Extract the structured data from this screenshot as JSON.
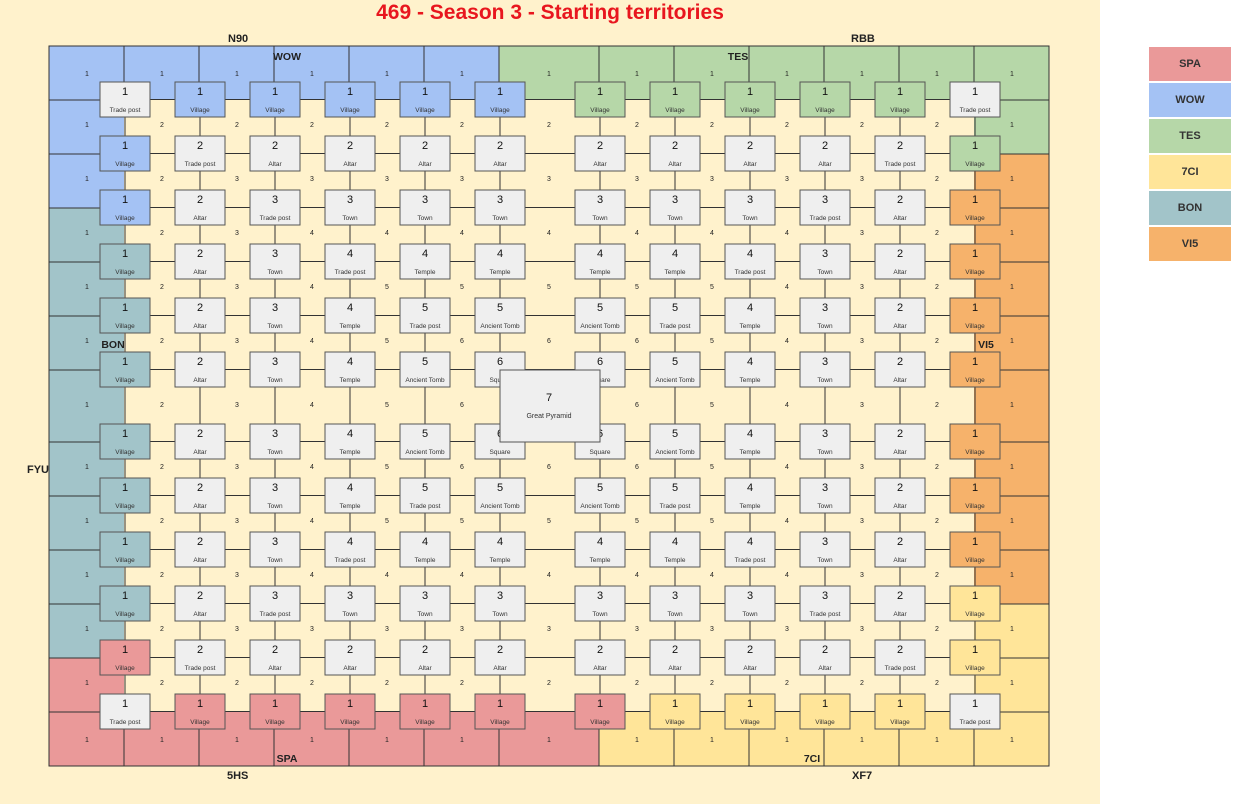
{
  "title": "469 - Season 3 - Starting territories",
  "colors": {
    "SPA": "#ea9999",
    "WOW": "#a4c2f4",
    "TES": "#b6d7a8",
    "7CI": "#ffe599",
    "BON": "#a2c4c9",
    "VI5": "#f6b26b",
    "neutral": "#efefef",
    "background": "#fff2cc"
  },
  "legend": [
    {
      "code": "SPA",
      "color": "#ea9999"
    },
    {
      "code": "WOW",
      "color": "#a4c2f4"
    },
    {
      "code": "TES",
      "color": "#b6d7a8"
    },
    {
      "code": "7CI",
      "color": "#ffe599"
    },
    {
      "code": "BON",
      "color": "#a2c4c9"
    },
    {
      "code": "VI5",
      "color": "#f6b26b"
    }
  ],
  "edge_labels": {
    "top_left": "N90",
    "top_right": "RBB",
    "left": "FYU",
    "bottom_left": "5HS",
    "bottom_right": "XF7"
  },
  "region_labels": [
    {
      "text": "WOW",
      "area": "top-left"
    },
    {
      "text": "TES",
      "area": "top-right"
    },
    {
      "text": "BON",
      "area": "left"
    },
    {
      "text": "VI5",
      "area": "right"
    },
    {
      "text": "SPA",
      "area": "bottom-left"
    },
    {
      "text": "7CI",
      "area": "bottom-right"
    }
  ],
  "grid": {
    "row_order": [
      0,
      1,
      2,
      3,
      4,
      5,
      6,
      7,
      8,
      9,
      10,
      11,
      12
    ],
    "tiles_levels": [
      [
        1,
        1,
        1,
        1,
        1,
        1,
        1,
        1,
        1,
        1,
        1,
        1
      ],
      [
        1,
        2,
        2,
        2,
        2,
        2,
        2,
        2,
        2,
        2,
        2,
        1
      ],
      [
        1,
        2,
        3,
        3,
        3,
        3,
        3,
        3,
        3,
        3,
        2,
        1
      ],
      [
        1,
        2,
        3,
        4,
        4,
        4,
        4,
        4,
        4,
        3,
        2,
        1
      ],
      [
        1,
        2,
        3,
        4,
        5,
        5,
        5,
        5,
        4,
        3,
        2,
        1
      ],
      [
        1,
        2,
        3,
        4,
        5,
        6,
        6,
        5,
        4,
        3,
        2,
        1
      ],
      [
        1,
        2,
        3,
        4,
        5,
        6,
        6,
        5,
        4,
        3,
        2,
        1
      ],
      [
        1,
        2,
        3,
        4,
        5,
        5,
        5,
        5,
        4,
        3,
        2,
        1
      ],
      [
        1,
        2,
        3,
        4,
        4,
        4,
        4,
        4,
        4,
        3,
        2,
        1
      ],
      [
        1,
        2,
        3,
        3,
        3,
        3,
        3,
        3,
        3,
        3,
        2,
        1
      ],
      [
        1,
        2,
        2,
        2,
        2,
        2,
        2,
        2,
        2,
        2,
        2,
        1
      ],
      [
        1,
        1,
        1,
        1,
        1,
        1,
        1,
        1,
        1,
        1,
        1,
        1
      ]
    ],
    "tiles_types": [
      [
        "Trade post",
        "Village",
        "Village",
        "Village",
        "Village",
        "Village",
        "Village",
        "Village",
        "Village",
        "Village",
        "Village",
        "Trade post"
      ],
      [
        "Village",
        "Trade post",
        "Altar",
        "Altar",
        "Altar",
        "Altar",
        "Altar",
        "Altar",
        "Altar",
        "Altar",
        "Trade post",
        "Village"
      ],
      [
        "Village",
        "Altar",
        "Trade post",
        "Town",
        "Town",
        "Town",
        "Town",
        "Town",
        "Town",
        "Trade post",
        "Altar",
        "Village"
      ],
      [
        "Village",
        "Altar",
        "Town",
        "Trade post",
        "Temple",
        "Temple",
        "Temple",
        "Temple",
        "Trade post",
        "Town",
        "Altar",
        "Village"
      ],
      [
        "Village",
        "Altar",
        "Town",
        "Temple",
        "Trade post",
        "Ancient Tomb",
        "Ancient Tomb",
        "Trade post",
        "Temple",
        "Town",
        "Altar",
        "Village"
      ],
      [
        "Village",
        "Altar",
        "Town",
        "Temple",
        "Ancient Tomb",
        "Square",
        "Square",
        "Ancient Tomb",
        "Temple",
        "Town",
        "Altar",
        "Village"
      ],
      [
        "Village",
        "Altar",
        "Town",
        "Temple",
        "Ancient Tomb",
        "Square",
        "Square",
        "Ancient Tomb",
        "Temple",
        "Town",
        "Altar",
        "Village"
      ],
      [
        "Village",
        "Altar",
        "Town",
        "Temple",
        "Trade post",
        "Ancient Tomb",
        "Ancient Tomb",
        "Trade post",
        "Temple",
        "Town",
        "Altar",
        "Village"
      ],
      [
        "Village",
        "Altar",
        "Town",
        "Trade post",
        "Temple",
        "Temple",
        "Temple",
        "Temple",
        "Trade post",
        "Town",
        "Altar",
        "Village"
      ],
      [
        "Village",
        "Altar",
        "Trade post",
        "Town",
        "Town",
        "Town",
        "Town",
        "Town",
        "Town",
        "Trade post",
        "Altar",
        "Village"
      ],
      [
        "Village",
        "Trade post",
        "Altar",
        "Altar",
        "Altar",
        "Altar",
        "Altar",
        "Altar",
        "Altar",
        "Altar",
        "Trade post",
        "Village"
      ],
      [
        "Trade post",
        "Village",
        "Village",
        "Village",
        "Village",
        "Village",
        "Village",
        "Village",
        "Village",
        "Village",
        "Village",
        "Trade post"
      ]
    ],
    "tiles_owner": [
      [
        "neutral",
        "WOW",
        "WOW",
        "WOW",
        "WOW",
        "WOW",
        "TES",
        "TES",
        "TES",
        "TES",
        "TES",
        "neutral"
      ],
      [
        "WOW",
        "neutral",
        "neutral",
        "neutral",
        "neutral",
        "neutral",
        "neutral",
        "neutral",
        "neutral",
        "neutral",
        "neutral",
        "TES"
      ],
      [
        "WOW",
        "neutral",
        "neutral",
        "neutral",
        "neutral",
        "neutral",
        "neutral",
        "neutral",
        "neutral",
        "neutral",
        "neutral",
        "VI5"
      ],
      [
        "BON",
        "neutral",
        "neutral",
        "neutral",
        "neutral",
        "neutral",
        "neutral",
        "neutral",
        "neutral",
        "neutral",
        "neutral",
        "VI5"
      ],
      [
        "BON",
        "neutral",
        "neutral",
        "neutral",
        "neutral",
        "neutral",
        "neutral",
        "neutral",
        "neutral",
        "neutral",
        "neutral",
        "VI5"
      ],
      [
        "BON",
        "neutral",
        "neutral",
        "neutral",
        "neutral",
        "neutral",
        "neutral",
        "neutral",
        "neutral",
        "neutral",
        "neutral",
        "VI5"
      ],
      [
        "BON",
        "neutral",
        "neutral",
        "neutral",
        "neutral",
        "neutral",
        "neutral",
        "neutral",
        "neutral",
        "neutral",
        "neutral",
        "VI5"
      ],
      [
        "BON",
        "neutral",
        "neutral",
        "neutral",
        "neutral",
        "neutral",
        "neutral",
        "neutral",
        "neutral",
        "neutral",
        "neutral",
        "VI5"
      ],
      [
        "BON",
        "neutral",
        "neutral",
        "neutral",
        "neutral",
        "neutral",
        "neutral",
        "neutral",
        "neutral",
        "neutral",
        "neutral",
        "VI5"
      ],
      [
        "BON",
        "neutral",
        "neutral",
        "neutral",
        "neutral",
        "neutral",
        "neutral",
        "neutral",
        "neutral",
        "neutral",
        "neutral",
        "7CI"
      ],
      [
        "SPA",
        "neutral",
        "neutral",
        "neutral",
        "neutral",
        "neutral",
        "neutral",
        "neutral",
        "neutral",
        "neutral",
        "neutral",
        "7CI"
      ],
      [
        "neutral",
        "SPA",
        "SPA",
        "SPA",
        "SPA",
        "SPA",
        "SPA",
        "7CI",
        "7CI",
        "7CI",
        "7CI",
        "neutral"
      ]
    ],
    "gaps_top": [
      1,
      1,
      1,
      1,
      1,
      1,
      1,
      1,
      1,
      1,
      1,
      1,
      1
    ],
    "gaps_values": [
      [
        1,
        2,
        2,
        2,
        2,
        2,
        2,
        2,
        2,
        2,
        2,
        2,
        1
      ],
      [
        1,
        2,
        3,
        3,
        3,
        3,
        3,
        3,
        3,
        3,
        3,
        2,
        1
      ],
      [
        1,
        2,
        3,
        4,
        4,
        4,
        4,
        4,
        4,
        4,
        3,
        2,
        1
      ],
      [
        1,
        2,
        3,
        4,
        5,
        5,
        5,
        5,
        5,
        4,
        3,
        2,
        1
      ],
      [
        1,
        2,
        3,
        4,
        5,
        6,
        6,
        6,
        5,
        4,
        3,
        2,
        1
      ],
      [
        1,
        2,
        3,
        4,
        5,
        6,
        6,
        6,
        5,
        4,
        3,
        2,
        1
      ],
      [
        1,
        2,
        3,
        4,
        5,
        6,
        6,
        6,
        5,
        4,
        3,
        2,
        1
      ],
      [
        1,
        2,
        3,
        4,
        5,
        5,
        5,
        5,
        5,
        4,
        3,
        2,
        1
      ],
      [
        1,
        2,
        3,
        4,
        4,
        4,
        4,
        4,
        4,
        4,
        3,
        2,
        1
      ],
      [
        1,
        2,
        3,
        3,
        3,
        3,
        3,
        3,
        3,
        3,
        3,
        2,
        1
      ],
      [
        1,
        2,
        2,
        2,
        2,
        2,
        2,
        2,
        2,
        2,
        2,
        2,
        1
      ]
    ],
    "bottom_row_values": [
      1,
      1,
      1,
      1,
      1,
      1,
      1,
      1,
      1,
      1,
      1,
      1,
      1
    ],
    "center": {
      "level": "7",
      "type": "Great Pyramid"
    }
  }
}
